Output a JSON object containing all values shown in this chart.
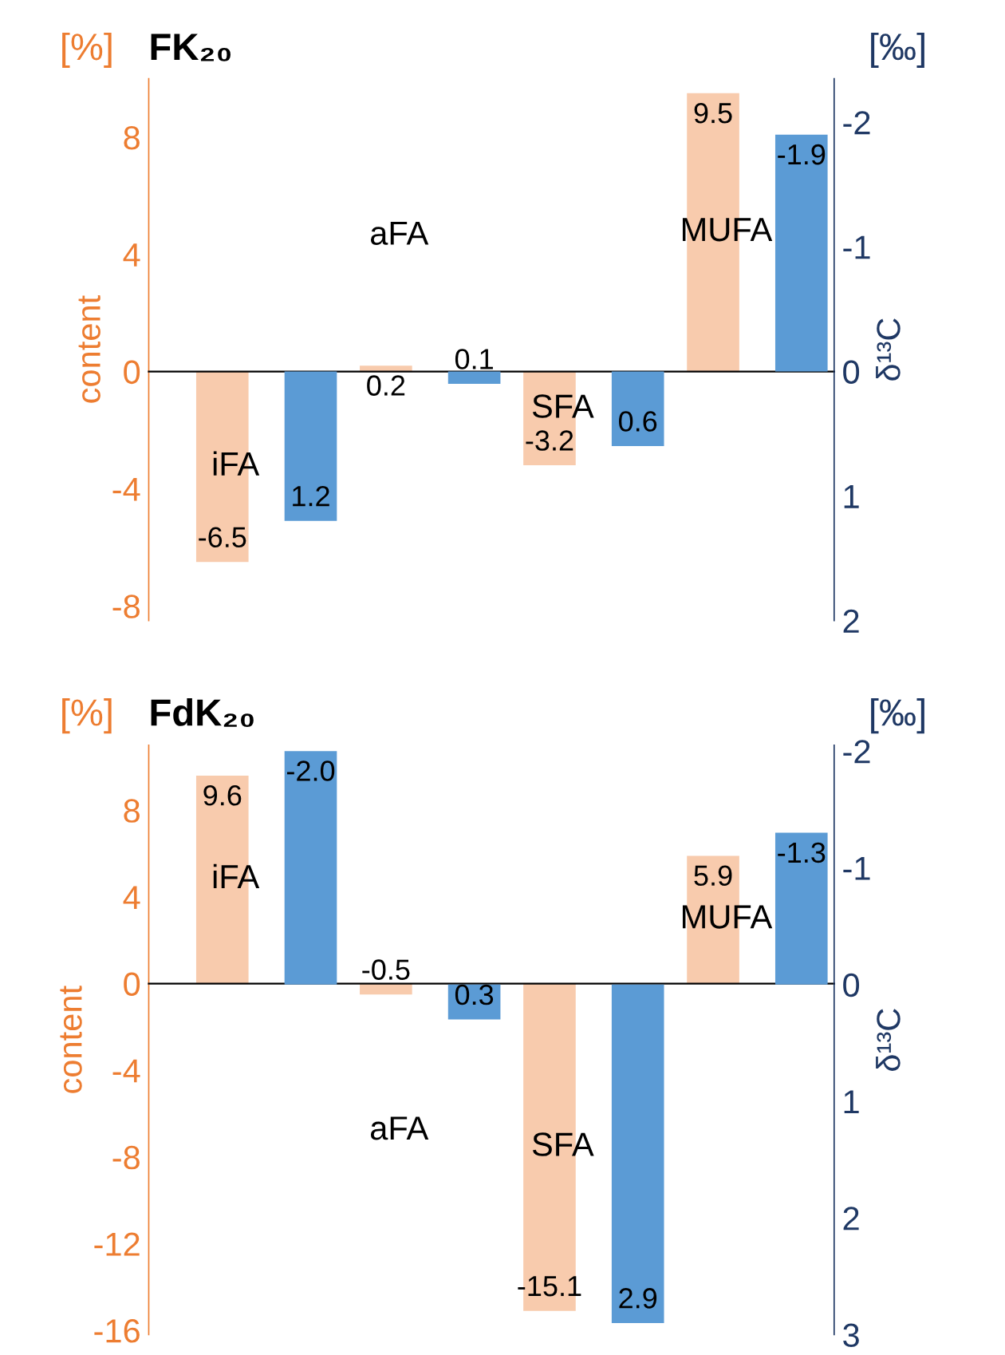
{
  "chart_data": [
    {
      "type": "bar",
      "title": "FK₂₀",
      "ylabel": "content",
      "y2label": "δ¹³C",
      "annotations": [
        "[%]",
        "[‰]"
      ],
      "categories": [
        "iFA",
        "aFA",
        "SFA",
        "MUFA"
      ],
      "series": [
        {
          "color": "#f8cbad",
          "values": [
            -6.5,
            0.2,
            -3.2,
            9.5
          ]
        },
        {
          "color": "#5b9bd5",
          "values": [
            1.2,
            0.1,
            0.6,
            -1.9
          ],
          "axis": "y2"
        }
      ],
      "ylim": [
        -8.5,
        10
      ],
      "yticks": [
        -8,
        -4,
        0,
        4,
        8
      ],
      "y2lim": [
        2.0,
        -2.35
      ],
      "y2ticks": [
        2,
        1,
        0,
        -1,
        -2
      ],
      "data_labels": true
    },
    {
      "type": "bar",
      "title": "FdK₂₀",
      "ylabel": "content",
      "y2label": "δ¹³C",
      "annotations": [
        "[%]",
        "[‰]"
      ],
      "categories": [
        "iFA",
        "aFA",
        "SFA",
        "MUFA"
      ],
      "series": [
        {
          "color": "#f8cbad",
          "values": [
            9.6,
            -0.5,
            -15.1,
            5.9
          ]
        },
        {
          "color": "#5b9bd5",
          "values": [
            -2.0,
            0.3,
            2.9,
            -1.3
          ],
          "value_labels": [
            "-2.0",
            "0.3",
            "2.9",
            "-1.3"
          ],
          "axis": "y2"
        }
      ],
      "ylim": [
        -16.2,
        11
      ],
      "yticks": [
        -16,
        -12,
        -8,
        -4,
        0,
        4,
        8
      ],
      "y2lim": [
        3.0,
        -2.05
      ],
      "y2ticks": [
        3,
        2,
        1,
        0,
        -1,
        -2
      ],
      "data_labels": true
    }
  ]
}
